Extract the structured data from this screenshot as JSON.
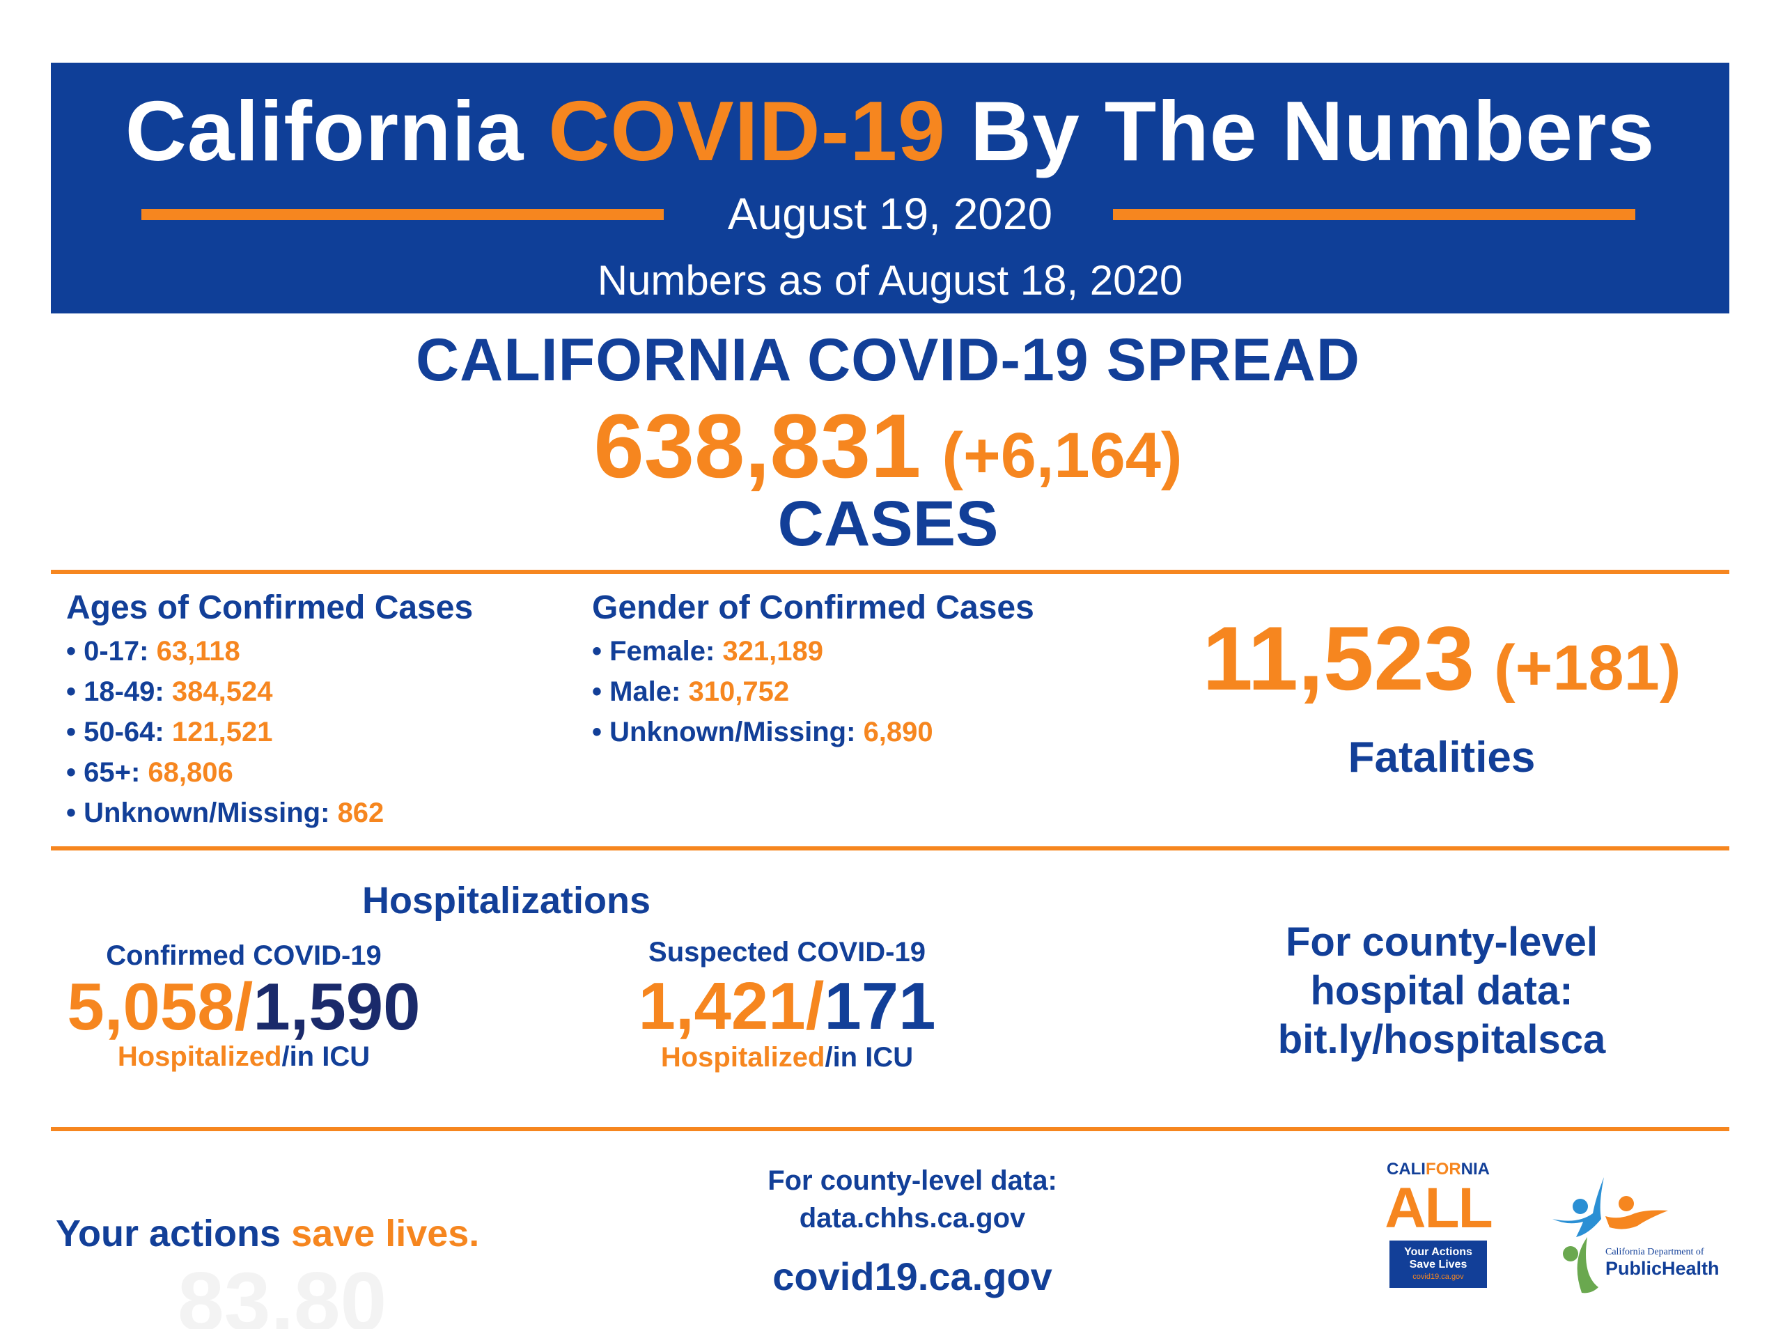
{
  "banner": {
    "title_part1": "California",
    "title_highlight": "COVID-19",
    "title_part2": "By The Numbers",
    "date": "August 19, 2020",
    "as_of": "Numbers as of August 18, 2020"
  },
  "spread": {
    "heading": "CALIFORNIA COVID-19 SPREAD",
    "total": "638,831",
    "change": "(+6,164)",
    "label": "CASES"
  },
  "ages": {
    "title": "Ages of Confirmed Cases",
    "items": [
      {
        "label": "• 0-17:",
        "value": "63,118"
      },
      {
        "label": "• 18-49:",
        "value": "384,524"
      },
      {
        "label": "• 50-64:",
        "value": "121,521"
      },
      {
        "label": "• 65+:",
        "value": "68,806"
      },
      {
        "label": "• Unknown/Missing:",
        "value": "862"
      }
    ]
  },
  "gender": {
    "title": "Gender of Confirmed Cases",
    "items": [
      {
        "label": "• Female:",
        "value": "321,189"
      },
      {
        "label": "• Male:",
        "value": "310,752"
      },
      {
        "label": "• Unknown/Missing:",
        "value": "6,890"
      }
    ]
  },
  "fatalities": {
    "total": "11,523",
    "change": "(+181)",
    "label": "Fatalities"
  },
  "hospitalizations": {
    "title": "Hospitalizations",
    "confirmed": {
      "subtitle": "Confirmed COVID-19",
      "hospitalized": "5,058/",
      "icu": "1,590",
      "label_hosp": "Hospitalized",
      "label_icu": "/in ICU"
    },
    "suspected": {
      "subtitle": "Suspected COVID-19",
      "hospitalized": "1,421/",
      "icu": "171",
      "label_hosp": "Hospitalized",
      "label_icu": "/in ICU"
    },
    "county_line1": "For county-level",
    "county_line2": "hospital data:",
    "county_link": "bit.ly/hospitalsca"
  },
  "footer": {
    "tagline_part1": "Your actions ",
    "tagline_part2": "save lives.",
    "watermark": "83,80",
    "county_data_label": "For county-level data:",
    "county_data_link": "data.chhs.ca.gov",
    "site": "covid19.ca.gov"
  },
  "logos": {
    "ca_all_top_1": "CALI",
    "ca_all_top_2": "FOR",
    "ca_all_top_3": "NIA",
    "ca_all_big": "ALL",
    "ca_all_box_line1": "Your Actions",
    "ca_all_box_line2": "Save Lives",
    "ca_all_box_line3": "covid19.ca.gov",
    "cdph_line1": "California Department of",
    "cdph_line2": "PublicHealth"
  },
  "colors": {
    "brand_blue": "#0f3f98",
    "text_blue": "#123f98",
    "accent_orange": "#f6861f"
  }
}
